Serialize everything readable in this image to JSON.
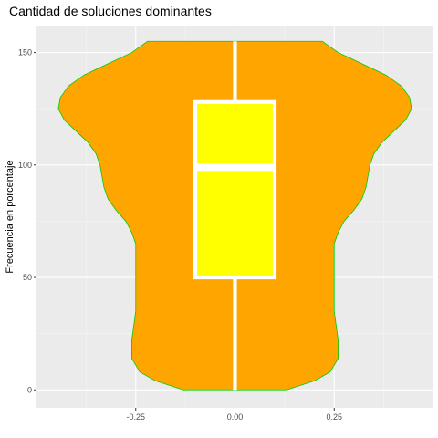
{
  "chart_data": {
    "type": "violin",
    "title": "Cantidad de soluciones dominantes",
    "xlabel": "",
    "ylabel": "Frecuencia en porcentaje",
    "xlim": [
      -0.5,
      0.5
    ],
    "ylim": [
      -8,
      162
    ],
    "x_ticks": [
      {
        "value": -0.25,
        "label": "-0.25"
      },
      {
        "value": 0,
        "label": "0.00"
      },
      {
        "value": 0.25,
        "label": "0.25"
      }
    ],
    "y_ticks": [
      {
        "value": 0,
        "label": "0"
      },
      {
        "value": 50,
        "label": "50"
      },
      {
        "value": 100,
        "label": "100"
      },
      {
        "value": 150,
        "label": "150"
      }
    ],
    "grid": true,
    "legend": "none",
    "violin": {
      "fill": "#FFA500",
      "outline": "#00CC00",
      "profile": [
        [
          0,
          0.13
        ],
        [
          4,
          0.2
        ],
        [
          8,
          0.24
        ],
        [
          14,
          0.26
        ],
        [
          22,
          0.26
        ],
        [
          35,
          0.25
        ],
        [
          50,
          0.25
        ],
        [
          60,
          0.25
        ],
        [
          65,
          0.25
        ],
        [
          70,
          0.26
        ],
        [
          75,
          0.275
        ],
        [
          80,
          0.3
        ],
        [
          85,
          0.32
        ],
        [
          90,
          0.33
        ],
        [
          95,
          0.335
        ],
        [
          100,
          0.34
        ],
        [
          105,
          0.35
        ],
        [
          110,
          0.37
        ],
        [
          115,
          0.4
        ],
        [
          120,
          0.43
        ],
        [
          125,
          0.445
        ],
        [
          130,
          0.44
        ],
        [
          135,
          0.42
        ],
        [
          140,
          0.38
        ],
        [
          145,
          0.32
        ],
        [
          150,
          0.26
        ],
        [
          155,
          0.22
        ]
      ]
    },
    "boxplot": {
      "fill": "#FFFF00",
      "outline": "#FFFFFF",
      "whisker_low": 0,
      "q1": 50,
      "median": 99,
      "q3": 128,
      "whisker_high": 155,
      "half_width": 0.1
    }
  }
}
